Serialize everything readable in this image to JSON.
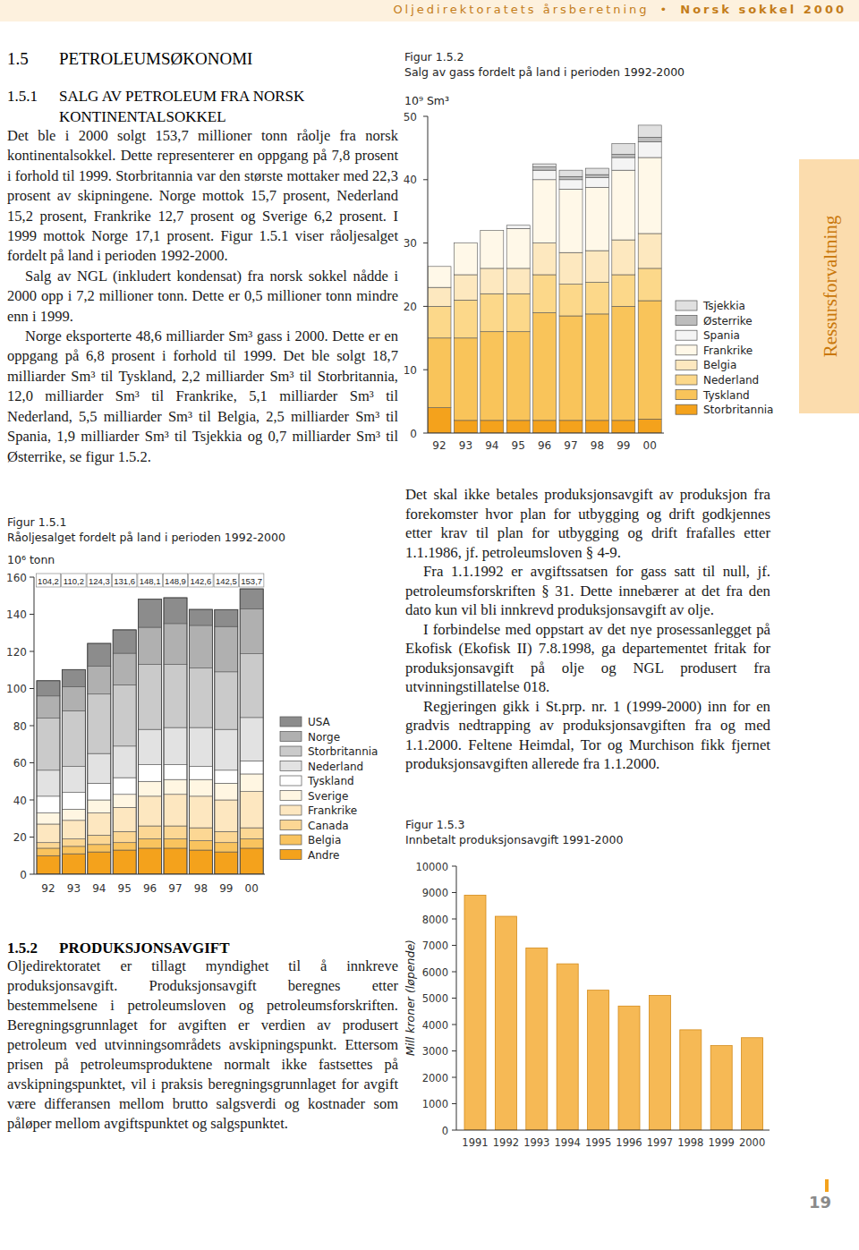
{
  "header": {
    "publication": "Oljedirektoratets årsberetning",
    "separator": "•",
    "edition": "Norsk sokkel 2000"
  },
  "side_tab": "Ressursforvaltning",
  "page_number": "19",
  "left_column": {
    "heading": {
      "number": "1.5",
      "title": "PETROLEUMSØKONOMI"
    },
    "section_1": {
      "number": "1.5.1",
      "title": "SALG AV PETROLEUM FRA NORSK KONTINENTALSOKKEL",
      "paragraphs": [
        "Det ble i 2000 solgt 153,7 millioner tonn råolje fra norsk kontinentalsokkel. Dette representerer en oppgang på 7,8 prosent i forhold til 1999. Storbritannia var den største mottaker med 22,3 prosent av skipningene. Norge mottok 15,7 prosent, Nederland 15,2 prosent, Frankrike 12,7 prosent og Sverige 6,2 prosent. I 1999 mottok Norge 17,1 prosent. Figur 1.5.1 viser råoljesalget fordelt på land i perioden 1992-2000.",
        "Salg av NGL (inkludert kondensat) fra norsk sokkel nådde i 2000 opp i 7,2 millioner tonn. Dette er 0,5 millioner tonn mindre enn i 1999.",
        "Norge eksporterte 48,6 milliarder Sm³ gass i 2000. Dette er en oppgang på 6,8 prosent i forhold til 1999. Det ble solgt 18,7 milliarder Sm³ til Tyskland, 2,2 milliarder Sm³ til Storbritannia, 12,0 milliarder Sm³ til Frankrike, 5,1 milliarder Sm³ til Nederland, 5,5 milliarder Sm³ til Belgia, 2,5 milliarder Sm³ til Spania, 1,9 milliarder Sm³ til Tsjekkia og 0,7 milliarder Sm³ til Østerrike, se figur 1.5.2."
      ]
    },
    "section_2": {
      "number": "1.5.2",
      "title": "PRODUKSJONSAVGIFT",
      "paragraphs": [
        "Oljedirektoratet er tillagt myndighet til å innkreve produksjonsavgift. Produksjonsavgift beregnes etter bestemmelsene i petroleumsloven og petroleumsforskriften. Beregningsgrunnlaget for avgiften er verdien av produsert petroleum ved utvinningsområdets avskipningspunkt. Ettersom prisen på petroleumsproduktene normalt ikke fastsettes på avskipningspunktet, vil i praksis beregningsgrunnlaget for avgift være differansen mellom brutto salgsverdi og kostnader som påløper mellom avgiftspunktet og salgspunktet."
      ]
    }
  },
  "right_column": {
    "paragraphs": [
      "Det skal ikke betales produksjonsavgift av produksjon fra forekomster hvor plan for utbygging og drift godkjennes etter krav til plan for utbygging og drift frafalles etter 1.1.1986, jf. petroleumsloven § 4-9.",
      "Fra 1.1.1992 er avgiftssatsen for gass satt til null, jf. petroleumsforskriften § 31. Dette innebærer at det fra den dato kun vil bli innkrevd produksjonsavgift av olje.",
      "I forbindelse med oppstart av det nye prosessanlegget på Ekofisk (Ekofisk II) 7.8.1998, ga departementet fritak for produksjonsavgift på olje og NGL produsert fra utvinningstillatelse 018.",
      "Regjeringen gikk i St.prp. nr. 1 (1999-2000) inn for en gradvis nedtrapping av produksjonsavgiften fra og med 1.1.2000. Feltene Heimdal, Tor og Murchison fikk fjernet produksjonsavgiften allerede fra 1.1.2000."
    ]
  },
  "chart_data": [
    {
      "type": "bar",
      "figure": "Figur 1.5.1",
      "title": "Råoljesalget fordelt på land i perioden 1992-2000",
      "y_label": "10⁶ tonn",
      "stacked": true,
      "legend": "right",
      "categories": [
        "92",
        "93",
        "94",
        "95",
        "96",
        "97",
        "98",
        "99",
        "00"
      ],
      "series": [
        {
          "name": "USA",
          "color": "#8c8c8c",
          "values": [
            8.2,
            9.2,
            12.3,
            12.6,
            15.1,
            13.9,
            8.6,
            9.1,
            10.9
          ]
        },
        {
          "name": "Norge",
          "color": "#b0b0b0",
          "values": [
            12,
            13,
            15,
            17,
            20,
            22,
            23,
            24.4,
            24.1
          ]
        },
        {
          "name": "Storbritannia",
          "color": "#cacaca",
          "values": [
            28,
            30,
            32,
            33,
            35,
            34,
            32,
            31,
            34.3
          ]
        },
        {
          "name": "Nederland",
          "color": "#e2e2e2",
          "values": [
            14,
            14,
            16,
            17,
            19,
            20,
            21,
            22,
            23.4
          ]
        },
        {
          "name": "Tyskland",
          "color": "#ffffff",
          "values": [
            9,
            9,
            9,
            9,
            9,
            8,
            7,
            7,
            7
          ]
        },
        {
          "name": "Sverige",
          "color": "#fff6e2",
          "values": [
            6,
            6,
            7,
            7,
            8,
            8,
            9,
            9,
            9.5
          ]
        },
        {
          "name": "Frankrike",
          "color": "#fde7c0",
          "values": [
            10,
            10,
            12,
            13,
            16,
            17,
            17,
            17,
            19.5
          ]
        },
        {
          "name": "Canada",
          "color": "#fcd794",
          "values": [
            3,
            4,
            5,
            6,
            7,
            7,
            7,
            6,
            6
          ]
        },
        {
          "name": "Belgia",
          "color": "#f9c35e",
          "values": [
            4,
            4,
            4,
            4,
            5,
            5,
            5,
            5,
            5
          ]
        },
        {
          "name": "Andre",
          "color": "#f4a21c",
          "values": [
            10,
            11,
            12,
            13,
            14,
            14,
            13,
            12,
            14
          ]
        }
      ],
      "totals": [
        104.2,
        110.2,
        124.3,
        131.6,
        148.1,
        148.9,
        142.6,
        142.5,
        153.7
      ],
      "total_labels": [
        "104,2",
        "110,2",
        "124,3",
        "131,6",
        "148,1",
        "148,9",
        "142,6",
        "142,5",
        "153,7"
      ],
      "ylim": [
        0,
        160
      ],
      "yticks": [
        0,
        20,
        40,
        60,
        80,
        100,
        120,
        140,
        160
      ]
    },
    {
      "type": "bar",
      "figure": "Figur 1.5.2",
      "title": "Salg av gass fordelt på land i perioden 1992-2000",
      "y_label": "10⁹ Sm³",
      "stacked": true,
      "legend": "right",
      "categories": [
        "92",
        "93",
        "94",
        "95",
        "96",
        "97",
        "98",
        "99",
        "00"
      ],
      "series": [
        {
          "name": "Tsjekkia",
          "color": "#e0e0e0",
          "values": [
            0,
            0,
            0,
            0,
            0.5,
            1,
            1,
            1.7,
            1.9
          ]
        },
        {
          "name": "Østerrike",
          "color": "#bdbdbd",
          "values": [
            0,
            0,
            0,
            0,
            0.5,
            0.5,
            0.5,
            0.5,
            0.7
          ]
        },
        {
          "name": "Spania",
          "color": "#f4f4f4",
          "values": [
            0,
            0,
            0,
            0.5,
            1.5,
            1.5,
            1.5,
            2,
            2.5
          ]
        },
        {
          "name": "Frankrike",
          "color": "#fff8e8",
          "values": [
            3.3,
            5,
            6,
            6.3,
            10,
            10,
            10,
            11,
            12
          ]
        },
        {
          "name": "Belgia",
          "color": "#fde8bf",
          "values": [
            3,
            4,
            4,
            4,
            5,
            5,
            5,
            5.5,
            5.5
          ]
        },
        {
          "name": "Nederland",
          "color": "#fcd88a",
          "values": [
            5,
            6,
            6,
            6,
            6,
            5,
            5,
            5,
            5.1
          ]
        },
        {
          "name": "Tyskland",
          "color": "#f9c45a",
          "values": [
            11,
            13,
            14,
            14,
            17,
            16.5,
            16.8,
            18,
            18.7
          ]
        },
        {
          "name": "Storbritannia",
          "color": "#f4a21c",
          "values": [
            4,
            2,
            2,
            2,
            2,
            2,
            2,
            2,
            2.2
          ]
        }
      ],
      "ylim": [
        0,
        50
      ],
      "yticks": [
        0,
        10,
        20,
        30,
        40,
        50
      ]
    },
    {
      "type": "bar",
      "figure": "Figur 1.5.3",
      "title": "Innbetalt produksjonsavgift 1991-2000",
      "y_label": "Mill kroner (løpende)",
      "categories": [
        "1991",
        "1992",
        "1993",
        "1994",
        "1995",
        "1996",
        "1997",
        "1998",
        "1999",
        "2000"
      ],
      "values": [
        8900,
        8100,
        6900,
        6300,
        5300,
        4700,
        5100,
        3800,
        3200,
        3500
      ],
      "color": "#f6b955",
      "ylim": [
        0,
        10000
      ],
      "yticks": [
        0,
        1000,
        2000,
        3000,
        4000,
        5000,
        6000,
        7000,
        8000,
        9000,
        10000
      ]
    }
  ]
}
